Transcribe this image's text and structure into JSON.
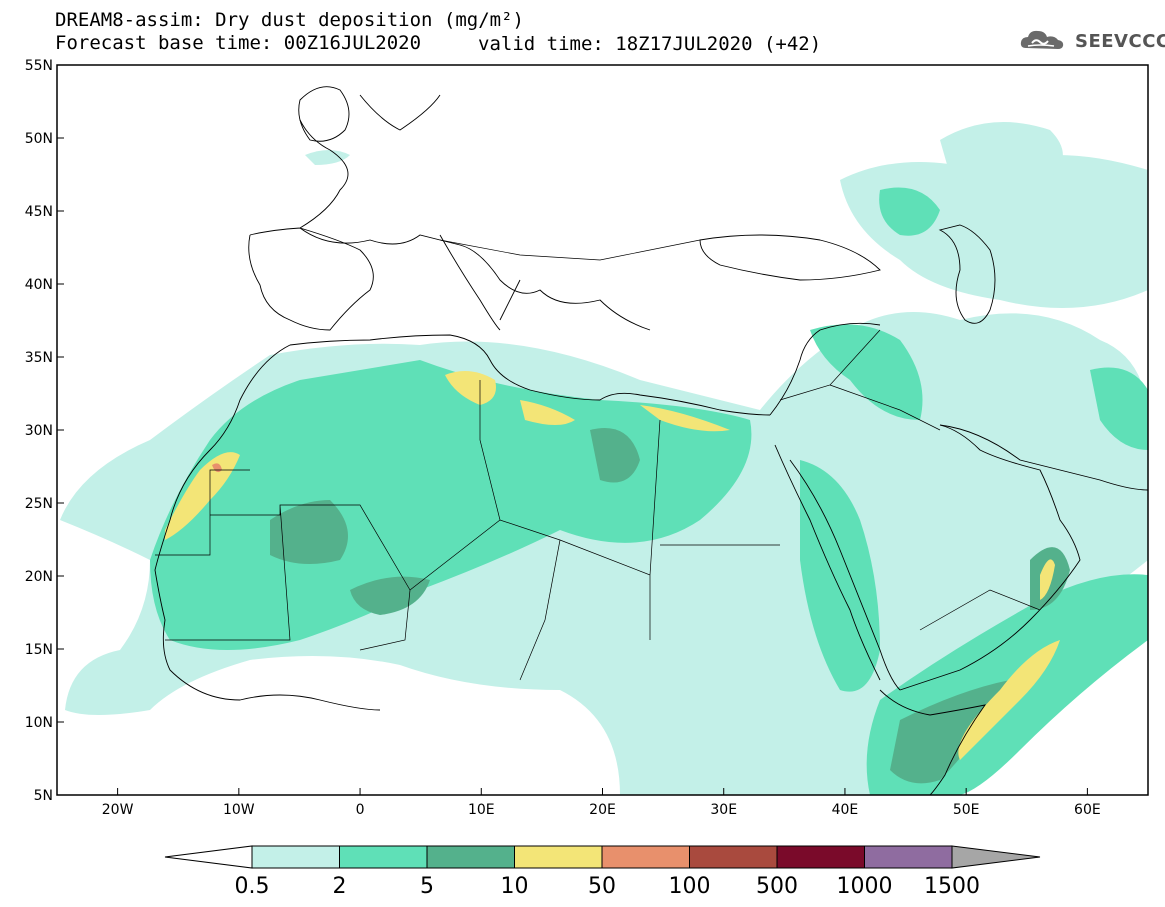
{
  "header": {
    "title": "DREAM8-assim: Dry dust deposition (mg/m²)",
    "base_time": "Forecast base time: 00Z16JUL2020",
    "valid_time": "valid time: 18Z17JUL2020 (+42)"
  },
  "logo": {
    "text": "SEEVCCC",
    "icon": "cloud-icon"
  },
  "map": {
    "lon_range": [
      -25,
      65
    ],
    "lat_range": [
      5,
      55
    ],
    "lon_ticks": [
      {
        "value": -20,
        "label": "20W"
      },
      {
        "value": -10,
        "label": "10W"
      },
      {
        "value": 0,
        "label": "0"
      },
      {
        "value": 10,
        "label": "10E"
      },
      {
        "value": 20,
        "label": "20E"
      },
      {
        "value": 30,
        "label": "30E"
      },
      {
        "value": 40,
        "label": "40E"
      },
      {
        "value": 50,
        "label": "50E"
      },
      {
        "value": 60,
        "label": "60E"
      }
    ],
    "lat_ticks": [
      {
        "value": 5,
        "label": "5N"
      },
      {
        "value": 10,
        "label": "10N"
      },
      {
        "value": 15,
        "label": "15N"
      },
      {
        "value": 20,
        "label": "20N"
      },
      {
        "value": 25,
        "label": "25N"
      },
      {
        "value": 30,
        "label": "30N"
      },
      {
        "value": 35,
        "label": "35N"
      },
      {
        "value": 40,
        "label": "40N"
      },
      {
        "value": 45,
        "label": "45N"
      },
      {
        "value": 50,
        "label": "50N"
      },
      {
        "value": 55,
        "label": "55N"
      }
    ]
  },
  "colorbar": {
    "colors": [
      "#c3f0e8",
      "#5fe0b7",
      "#54b18c",
      "#f3e577",
      "#e8906c",
      "#a94a3e",
      "#7a0a2a",
      "#8f6ca0"
    ],
    "under_color": "#ffffff",
    "over_color": "#a6a6a6",
    "labels": [
      "0.5",
      "2",
      "5",
      "10",
      "50",
      "100",
      "500",
      "1000",
      "1500"
    ]
  }
}
